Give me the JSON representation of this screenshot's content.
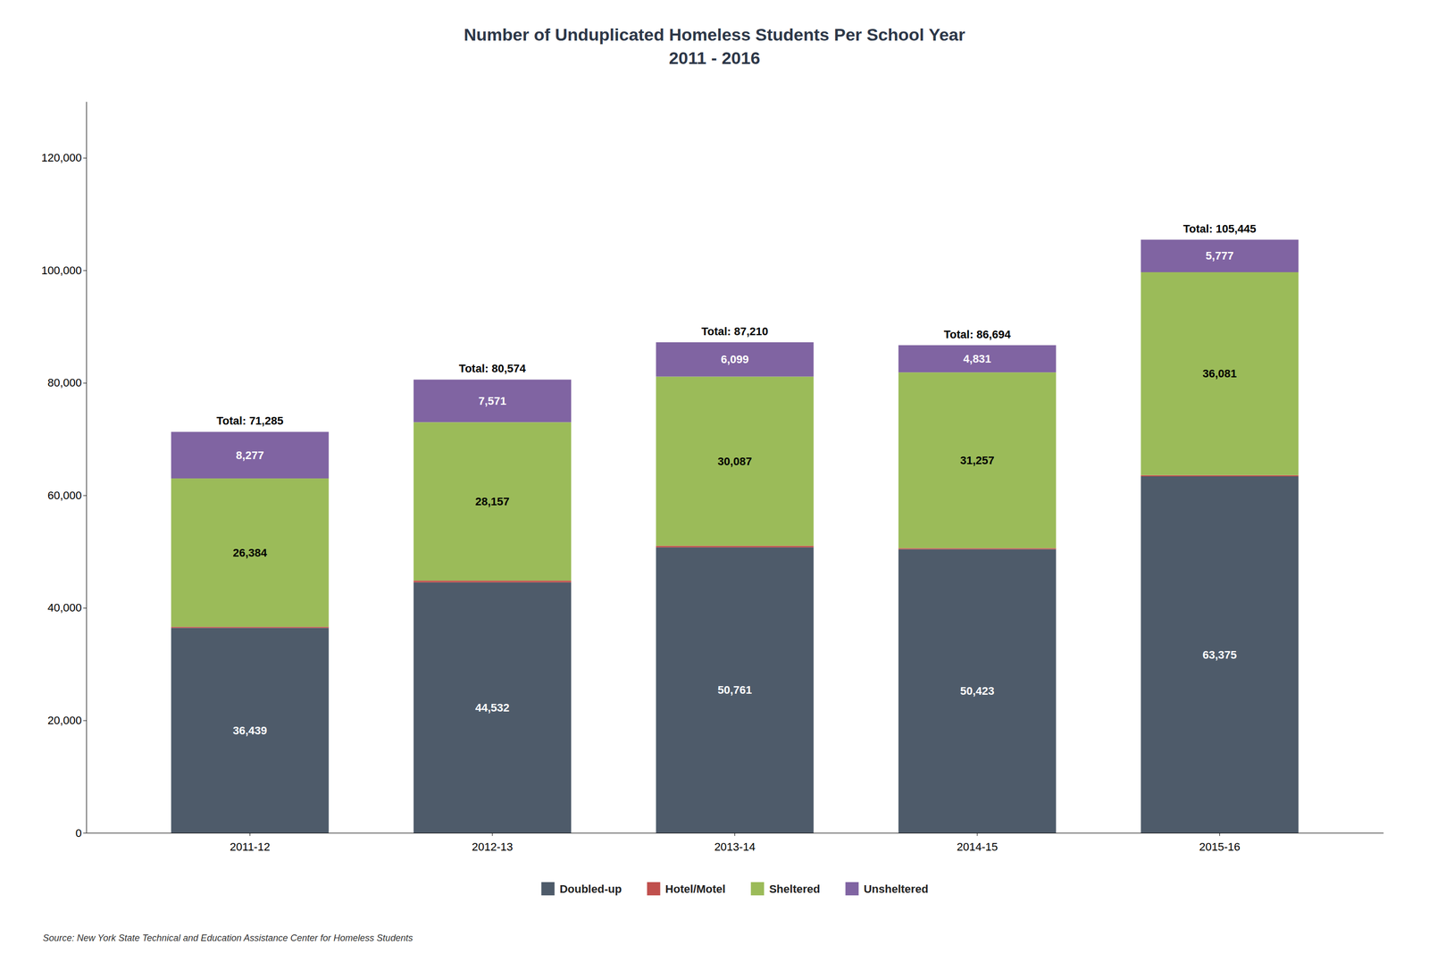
{
  "chart_data": {
    "type": "bar",
    "stacked": true,
    "title": "Number of Unduplicated Homeless Students Per School Year",
    "subtitle": "2011 - 2016",
    "categories": [
      "2011-12",
      "2012-13",
      "2013-14",
      "2014-15",
      "2015-16"
    ],
    "series": [
      {
        "name": "Doubled-up",
        "color": "#4e5b6a",
        "data_labels": true,
        "values": [
          36439,
          44532,
          50761,
          50423,
          63375
        ],
        "value_labels": [
          "36,439",
          "44,532",
          "50,761",
          "50,423",
          "63,375"
        ]
      },
      {
        "name": "Hotel/Motel",
        "color": "#c0504d",
        "data_labels": false,
        "values": [
          185,
          314,
          263,
          183,
          212
        ]
      },
      {
        "name": "Sheltered",
        "color": "#9bbb59",
        "data_labels": true,
        "values": [
          26384,
          28157,
          30087,
          31257,
          36081
        ],
        "value_labels": [
          "26,384",
          "28,157",
          "30,087",
          "31,257",
          "36,081"
        ]
      },
      {
        "name": "Unsheltered",
        "color": "#8064a2",
        "data_labels": true,
        "values": [
          8277,
          7571,
          6099,
          4831,
          5777
        ],
        "value_labels": [
          "8,277",
          "7,571",
          "6,099",
          "4,831",
          "5,777"
        ]
      }
    ],
    "totals": [
      71285,
      80574,
      87210,
      86694,
      105445
    ],
    "total_labels": [
      "Total: 71,285",
      "Total: 80,574",
      "Total: 87,210",
      "Total: 86,694",
      "Total: 105,445"
    ],
    "ylim": [
      0,
      130000
    ],
    "yticks": [
      0,
      {
        "value": 20000,
        "label": "20,000"
      },
      {
        "value": 40000,
        "label": "40,000"
      },
      {
        "value": 60000,
        "label": "60,000"
      },
      {
        "value": 80000,
        "label": "80,000"
      },
      {
        "value": 100000,
        "label": "100,000"
      },
      {
        "value": 120000,
        "label": "120,000"
      }
    ],
    "grid": false,
    "legend": "bottom",
    "source": "Source:  New York State Technical and Education Assistance Center for Homeless Students"
  }
}
